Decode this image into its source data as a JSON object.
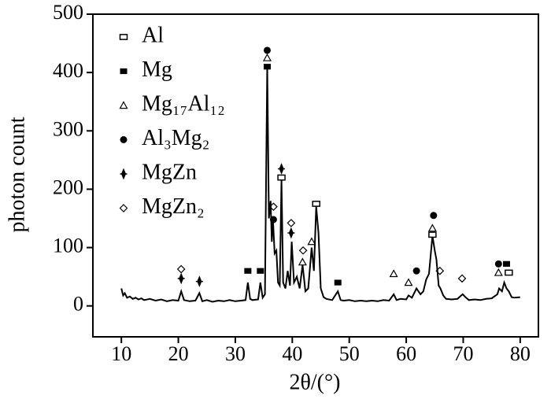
{
  "chart_data": {
    "type": "line",
    "x_label": "2θ/(°)",
    "y_label": "photon count",
    "xlim": [
      5,
      83.2
    ],
    "ylim": [
      -53,
      500
    ],
    "xticks": [
      10,
      20,
      30,
      40,
      50,
      60,
      70,
      80
    ],
    "yticks": [
      0,
      100,
      200,
      300,
      400,
      500
    ],
    "legend": "upper left",
    "line_color": "#000000",
    "pattern": {
      "x": [
        10,
        10.3,
        10.6,
        11,
        11.5,
        12,
        12.5,
        13,
        13.5,
        14,
        15,
        16,
        17,
        18,
        19,
        20,
        20.5,
        21,
        22,
        23,
        23.7,
        24.2,
        25,
        26,
        27,
        28,
        29,
        30,
        31,
        31.8,
        32.2,
        32.6,
        33,
        34,
        34.4,
        34.8,
        35.2,
        35.6,
        35.9,
        36.2,
        36.4,
        36.6,
        36.9,
        37.2,
        37.5,
        37.8,
        38.1,
        38.4,
        38.8,
        39.2,
        39.6,
        39.9,
        40.3,
        40.8,
        41.3,
        41.8,
        42.3,
        42.8,
        43.4,
        43.8,
        44.2,
        44.6,
        45,
        45.5,
        46,
        47,
        48,
        48.5,
        49,
        50,
        51,
        52,
        53,
        54,
        55,
        56,
        57,
        57.8,
        58.3,
        59,
        60,
        60.4,
        61,
        61.8,
        62.5,
        63,
        63.5,
        64,
        64.6,
        65,
        65.3,
        65.7,
        66,
        66.5,
        67,
        68,
        69,
        69.9,
        70.5,
        71,
        72,
        73,
        74,
        75,
        76,
        76.3,
        76.8,
        77.2,
        77.6,
        78,
        78.5,
        79,
        80
      ],
      "values": [
        30,
        18,
        22,
        14,
        16,
        12,
        14,
        11,
        13,
        10,
        12,
        9,
        11,
        8,
        10,
        9,
        25,
        10,
        8,
        9,
        22,
        8,
        10,
        7,
        9,
        8,
        10,
        8,
        9,
        10,
        40,
        12,
        10,
        11,
        40,
        14,
        20,
        410,
        150,
        180,
        110,
        150,
        90,
        95,
        40,
        35,
        215,
        40,
        30,
        60,
        35,
        110,
        40,
        50,
        30,
        70,
        25,
        30,
        100,
        60,
        170,
        125,
        30,
        15,
        12,
        10,
        25,
        10,
        9,
        10,
        8,
        9,
        8,
        9,
        8,
        10,
        9,
        20,
        10,
        12,
        11,
        18,
        14,
        30,
        20,
        25,
        45,
        55,
        120,
        95,
        80,
        35,
        30,
        18,
        12,
        11,
        12,
        20,
        14,
        10,
        11,
        10,
        12,
        13,
        20,
        30,
        25,
        40,
        30,
        25,
        15,
        14,
        15
      ]
    },
    "series": [
      {
        "name": "Al",
        "marker": "open-square",
        "color": "#000000",
        "x": [
          38.1,
          44.2,
          64.6,
          78.0
        ],
        "values": [
          220,
          175,
          122,
          57
        ]
      },
      {
        "name": "Mg",
        "marker": "filled-square",
        "color": "#000000",
        "x": [
          32.2,
          34.4,
          35.6,
          48.0,
          77.6
        ],
        "values": [
          60,
          60,
          410,
          40,
          72
        ]
      },
      {
        "name": "Mg₁₇Al₁₂",
        "marker": "triangle",
        "color": "#000000",
        "x": [
          35.6,
          41.8,
          43.4,
          57.8,
          60.4,
          64.6,
          76.2
        ],
        "values": [
          425,
          75,
          110,
          55,
          40,
          133,
          57
        ]
      },
      {
        "name": "Al₃Mg₂",
        "marker": "filled-circle",
        "color": "#000000",
        "x": [
          35.6,
          36.7,
          61.8,
          64.8,
          76.2
        ],
        "values": [
          438,
          148,
          60,
          155,
          72
        ]
      },
      {
        "name": "MgZn",
        "marker": "star",
        "color": "#000000",
        "x": [
          20.5,
          23.7,
          38.1,
          39.8
        ],
        "values": [
          47,
          42,
          235,
          125
        ]
      },
      {
        "name": "MgZn₂",
        "marker": "open-diamond",
        "color": "#000000",
        "x": [
          20.5,
          36.7,
          39.8,
          41.9,
          65.9,
          69.8
        ],
        "values": [
          63,
          170,
          142,
          95,
          60,
          47
        ]
      }
    ]
  }
}
